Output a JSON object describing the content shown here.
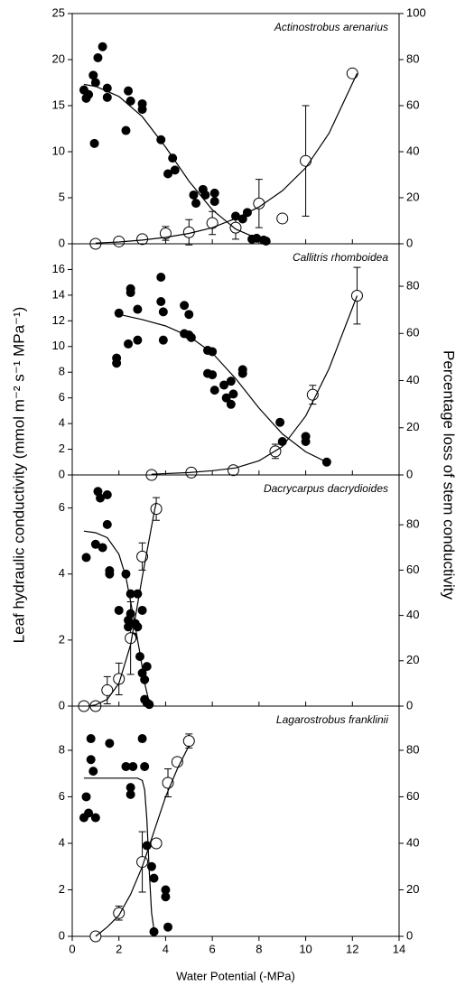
{
  "chart_data": [
    {
      "type": "scatter",
      "title": "Actinostrobus arenarius",
      "ylabel": "Leaf hydraulic conductivity (mmol m⁻² s⁻¹ MPa⁻¹)",
      "y2label": "Percentage loss of stem conductivity",
      "xlim": [
        0,
        14
      ],
      "xticks": [
        0,
        2,
        4,
        6,
        8,
        10,
        12,
        14
      ],
      "ylim": [
        0,
        25
      ],
      "yticks": [
        0,
        5,
        10,
        15,
        20,
        25
      ],
      "y2lim": [
        0,
        100
      ],
      "y2ticks": [
        0,
        20,
        40,
        60,
        80,
        100
      ],
      "series": [
        {
          "marker": "filled",
          "color": "#000000",
          "x": [
            0.5,
            0.6,
            0.7,
            0.9,
            0.95,
            1.0,
            1.1,
            1.3,
            1.5,
            1.5,
            2.4,
            2.3,
            2.5,
            3.0,
            3.0,
            3.8,
            4.1,
            4.3,
            4.4,
            5.2,
            5.3,
            5.6,
            5.7,
            6.1,
            6.1,
            7.0,
            7.3,
            7.5,
            7.7,
            7.9,
            8.2,
            8.3
          ],
          "values": [
            16.7,
            15.8,
            16.2,
            18.3,
            10.9,
            17.5,
            20.2,
            21.4,
            16.9,
            15.9,
            16.6,
            12.3,
            15.5,
            15.2,
            14.6,
            11.3,
            7.6,
            9.3,
            8.0,
            5.3,
            4.4,
            5.9,
            5.3,
            5.5,
            4.6,
            3.0,
            2.7,
            3.4,
            0.5,
            0.6,
            0.4,
            0.3
          ]
        },
        {
          "marker": "open",
          "color": "#000000",
          "axis": "y2",
          "x": [
            1,
            2,
            3,
            4,
            5,
            6,
            7,
            8,
            9,
            10,
            12
          ],
          "values": [
            0,
            1,
            2,
            4.5,
            5,
            9,
            7,
            17.5,
            11,
            36,
            74
          ],
          "errors": [
            null,
            null,
            1,
            3,
            5.5,
            5,
            5,
            10.5,
            null,
            24,
            null
          ]
        },
        {
          "marker": "line",
          "color": "#000000",
          "x": [
            0.5,
            1,
            2,
            3,
            4,
            5,
            6,
            7,
            8,
            8.5
          ],
          "values": [
            17.3,
            17.1,
            16,
            13.8,
            10.5,
            6.8,
            3.7,
            1.6,
            0.5,
            0.2
          ]
        },
        {
          "marker": "line",
          "color": "#000000",
          "axis": "y2",
          "x": [
            1,
            2,
            3,
            4,
            5,
            6,
            7,
            8,
            9,
            10,
            11,
            12.2
          ],
          "values": [
            0.3,
            0.8,
            1.6,
            2.8,
            4.5,
            7,
            11,
            16,
            23,
            33,
            48,
            74
          ]
        }
      ]
    },
    {
      "type": "scatter",
      "title": "Callitris rhomboidea",
      "xlim": [
        0,
        14
      ],
      "xticks": [
        0,
        2,
        4,
        6,
        8,
        10,
        12,
        14
      ],
      "ylim": [
        0,
        18
      ],
      "yticks": [
        0,
        2,
        4,
        6,
        8,
        10,
        12,
        14,
        16
      ],
      "y2lim": [
        0,
        98
      ],
      "y2ticks": [
        0,
        20,
        40,
        60,
        80
      ],
      "series": [
        {
          "marker": "filled",
          "color": "#000000",
          "x": [
            1.9,
            1.9,
            2.0,
            2.4,
            2.5,
            2.5,
            2.8,
            2.8,
            3.8,
            3.8,
            3.9,
            3.9,
            4.8,
            4.8,
            5.0,
            5.0,
            5.1,
            5.8,
            5.8,
            6.0,
            6.0,
            6.1,
            6.5,
            6.6,
            6.8,
            6.8,
            6.9,
            7.3,
            7.3,
            8.9,
            9.0,
            10.0,
            10.0,
            10.9
          ],
          "values": [
            9.1,
            8.7,
            12.6,
            10.2,
            14.5,
            14.2,
            10.5,
            12.9,
            15.4,
            13.5,
            10.5,
            12.7,
            13.2,
            11.0,
            10.9,
            12.5,
            10.7,
            9.7,
            7.9,
            9.6,
            7.8,
            6.6,
            7.0,
            6.0,
            7.3,
            5.5,
            6.3,
            7.9,
            8.2,
            4.1,
            2.6,
            3.0,
            2.6,
            1.0
          ]
        },
        {
          "marker": "open",
          "color": "#000000",
          "axis": "y2",
          "x": [
            3.4,
            5.1,
            6.9,
            8.7,
            10.3,
            12.2
          ],
          "values": [
            0,
            1,
            2,
            10,
            34,
            76
          ],
          "errors": [
            null,
            null,
            null,
            3,
            4,
            12
          ]
        },
        {
          "marker": "line",
          "color": "#000000",
          "x": [
            2,
            3,
            4,
            5,
            6,
            7,
            8,
            9,
            10,
            10.9
          ],
          "values": [
            12.5,
            12.1,
            11.6,
            10.8,
            9.5,
            7.5,
            5.2,
            3.2,
            1.8,
            1.0
          ]
        },
        {
          "marker": "line",
          "color": "#000000",
          "axis": "y2",
          "x": [
            3.4,
            5,
            6,
            7,
            8,
            9,
            10,
            11,
            12.2
          ],
          "values": [
            0.3,
            1,
            1.8,
            3,
            6,
            12,
            25,
            45,
            76
          ]
        }
      ]
    },
    {
      "type": "scatter",
      "title": "Dacrycarpus dacrydioides",
      "xlim": [
        0,
        14
      ],
      "xticks": [
        0,
        2,
        4,
        6,
        8,
        10,
        12,
        14
      ],
      "ylim": [
        0,
        7
      ],
      "yticks": [
        0,
        2,
        4,
        6
      ],
      "y2lim": [
        0,
        102
      ],
      "y2ticks": [
        0,
        20,
        40,
        60,
        80
      ],
      "series": [
        {
          "marker": "filled",
          "color": "#000000",
          "x": [
            0.6,
            1.0,
            1.1,
            1.2,
            1.3,
            1.5,
            1.5,
            1.6,
            1.6,
            2.0,
            2.3,
            2.4,
            2.4,
            2.5,
            2.5,
            2.6,
            2.7,
            2.8,
            2.8,
            2.9,
            3.0,
            3.0,
            3.1,
            3.1,
            3.2,
            3.2,
            3.3
          ],
          "values": [
            4.5,
            4.9,
            6.5,
            6.3,
            4.8,
            5.5,
            6.4,
            4.1,
            4.0,
            2.9,
            4.0,
            2.6,
            2.4,
            2.8,
            3.4,
            2.1,
            2.5,
            3.4,
            2.4,
            1.5,
            2.9,
            1.0,
            0.8,
            0.2,
            0.1,
            1.2,
            0.05
          ]
        },
        {
          "marker": "open",
          "color": "#000000",
          "axis": "y2",
          "x": [
            0.5,
            1.0,
            1.5,
            2.0,
            2.5,
            3.0,
            3.6
          ],
          "values": [
            0,
            0,
            7,
            12,
            30,
            66,
            87
          ],
          "errors": [
            null,
            null,
            6,
            7,
            16,
            6,
            5
          ]
        },
        {
          "marker": "line",
          "color": "#000000",
          "x": [
            0.5,
            1,
            1.5,
            2,
            2.3,
            2.6,
            2.9,
            3.1,
            3.3
          ],
          "values": [
            5.3,
            5.25,
            5.1,
            4.6,
            3.9,
            2.8,
            1.6,
            0.7,
            0.1
          ]
        },
        {
          "marker": "line",
          "color": "#000000",
          "axis": "y2",
          "x": [
            0.7,
            1,
            1.5,
            2,
            2.5,
            3,
            3.5,
            3.6
          ],
          "values": [
            0,
            0.5,
            3,
            10,
            27,
            57,
            85,
            90
          ]
        }
      ]
    },
    {
      "type": "scatter",
      "title": "Lagarostrobus franklinii",
      "xlabel": "Water Potential (-MPa)",
      "xlim": [
        0,
        14
      ],
      "xticks": [
        0,
        2,
        4,
        6,
        8,
        10,
        12,
        14
      ],
      "ylim": [
        0,
        9.9
      ],
      "yticks": [
        0,
        2,
        4,
        6,
        8
      ],
      "y2lim": [
        0,
        99
      ],
      "y2ticks": [
        0,
        20,
        40,
        60,
        80
      ],
      "series": [
        {
          "marker": "filled",
          "color": "#000000",
          "x": [
            0.5,
            0.6,
            0.7,
            0.8,
            0.8,
            0.9,
            1.0,
            1.6,
            2.3,
            2.5,
            2.5,
            2.6,
            3.0,
            3.1,
            3.2,
            3.4,
            3.5,
            3.5,
            4.0,
            4.0,
            4.1
          ],
          "values": [
            5.1,
            6.0,
            5.3,
            8.5,
            7.6,
            7.1,
            5.1,
            8.3,
            7.3,
            6.4,
            6.1,
            7.3,
            8.5,
            7.3,
            3.9,
            3.0,
            2.5,
            0.2,
            1.7,
            2.0,
            0.4
          ]
        },
        {
          "marker": "open",
          "color": "#000000",
          "axis": "y2",
          "x": [
            1.0,
            2.0,
            3.0,
            3.6,
            4.1,
            4.5,
            5.0
          ],
          "values": [
            0,
            10,
            32,
            40,
            66,
            75,
            84
          ],
          "errors": [
            null,
            3,
            13,
            null,
            6,
            null,
            3
          ]
        },
        {
          "marker": "line",
          "color": "#000000",
          "x": [
            0.5,
            1,
            2,
            2.8,
            3.0,
            3.1,
            3.2,
            3.3,
            3.4,
            3.5,
            3.6
          ],
          "values": [
            6.8,
            6.8,
            6.8,
            6.8,
            6.7,
            6.3,
            5,
            2.8,
            1,
            0.3,
            0.1
          ]
        },
        {
          "marker": "line",
          "color": "#000000",
          "axis": "y2",
          "x": [
            1,
            1.5,
            2,
            2.5,
            3,
            3.5,
            4,
            4.5,
            5
          ],
          "values": [
            0,
            4,
            9,
            18,
            30,
            45,
            60,
            72,
            82
          ]
        }
      ]
    }
  ]
}
